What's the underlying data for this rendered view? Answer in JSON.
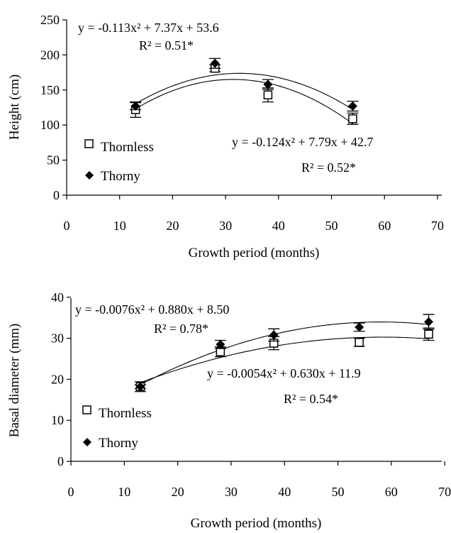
{
  "chart_data": [
    {
      "type": "scatter",
      "xlabel": "Growth period (months)",
      "ylabel": "Height (cm)",
      "xlim": [
        0,
        70
      ],
      "ylim": [
        0,
        250
      ],
      "xticks": [
        0,
        10,
        20,
        30,
        40,
        50,
        60,
        70
      ],
      "yticks": [
        0,
        50,
        100,
        150,
        200,
        250
      ],
      "legend": {
        "placement": "left",
        "entries": [
          "Thornless",
          "Thorny"
        ]
      },
      "series": [
        {
          "name": "Thornless",
          "marker": "open-square",
          "points": [
            {
              "x": 13,
              "y": 122,
              "err": 11
            },
            {
              "x": 28,
              "y": 181,
              "err": 5
            },
            {
              "x": 38,
              "y": 143,
              "err": 10
            },
            {
              "x": 54,
              "y": 109,
              "err": 8
            }
          ],
          "fit": {
            "a": -0.124,
            "b": 7.79,
            "c": 42.7
          },
          "equation": "y = -0.124x² + 7.79x + 42.7",
          "r2": "R² = 0.52*"
        },
        {
          "name": "Thorny",
          "marker": "filled-diamond",
          "points": [
            {
              "x": 13,
              "y": 127,
              "err": 5
            },
            {
              "x": 28,
              "y": 188,
              "err": 7
            },
            {
              "x": 38,
              "y": 158,
              "err": 7
            },
            {
              "x": 54,
              "y": 127,
              "err": 7
            }
          ],
          "fit": {
            "a": -0.113,
            "b": 7.37,
            "c": 53.6
          },
          "equation": "y = -0.113x² + 7.37x + 53.6",
          "r2": "R² = 0.51*"
        }
      ]
    },
    {
      "type": "scatter",
      "xlabel": "Growth period (months)",
      "ylabel": "Basal diameter (mm)",
      "xlim": [
        0,
        70
      ],
      "ylim": [
        0,
        40
      ],
      "xticks": [
        0,
        10,
        20,
        30,
        40,
        50,
        60,
        70
      ],
      "yticks": [
        0,
        10,
        20,
        30,
        40
      ],
      "legend": {
        "placement": "left",
        "entries": [
          "Thornless",
          "Thorny"
        ]
      },
      "series": [
        {
          "name": "Thornless",
          "marker": "open-square",
          "points": [
            {
              "x": 13,
              "y": 18.2,
              "err": 0.5
            },
            {
              "x": 28,
              "y": 26.7,
              "err": 1.2
            },
            {
              "x": 38,
              "y": 28.8,
              "err": 1.6
            },
            {
              "x": 54,
              "y": 29.0,
              "err": 1.0
            },
            {
              "x": 67,
              "y": 31.0,
              "err": 1.5
            }
          ],
          "fit": {
            "a": -0.0054,
            "b": 0.63,
            "c": 11.9
          },
          "equation": "y = -0.0054x² + 0.630x + 11.9",
          "r2": "R² = 0.54*"
        },
        {
          "name": "Thorny",
          "marker": "filled-diamond",
          "points": [
            {
              "x": 13,
              "y": 18.2,
              "err": 1.2
            },
            {
              "x": 28,
              "y": 28.5,
              "err": 1.0
            },
            {
              "x": 38,
              "y": 30.8,
              "err": 1.5
            },
            {
              "x": 54,
              "y": 32.7,
              "err": 1.0
            },
            {
              "x": 67,
              "y": 34.0,
              "err": 1.8
            }
          ],
          "fit": {
            "a": -0.0076,
            "b": 0.88,
            "c": 8.5
          },
          "equation": "y = -0.0076x² + 0.880x + 8.50",
          "r2": "R² = 0.78*"
        }
      ]
    }
  ]
}
